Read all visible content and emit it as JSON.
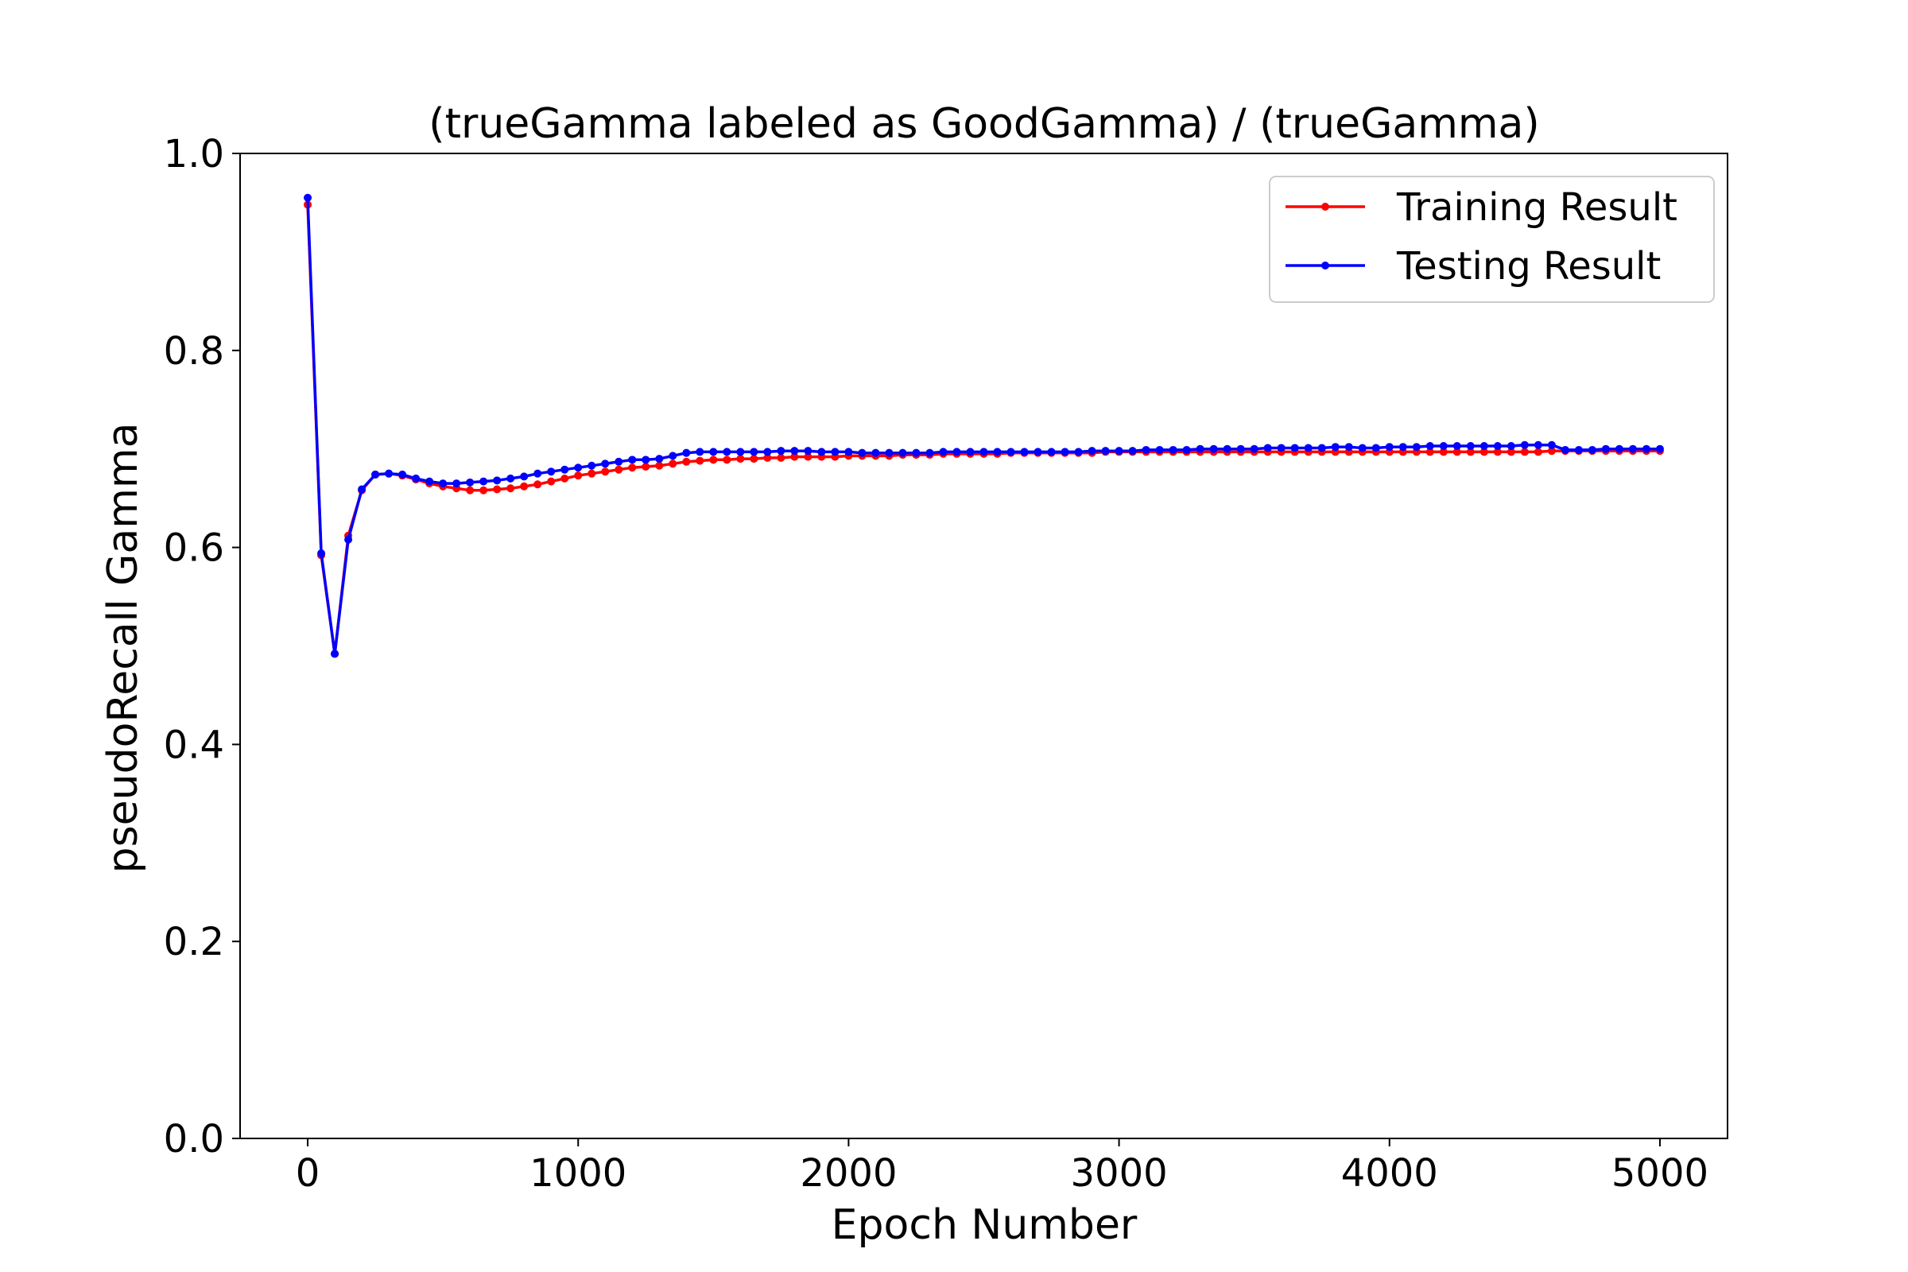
{
  "chart_data": {
    "type": "line",
    "title": "(trueGamma labeled as GoodGamma) / (trueGamma)",
    "xlabel": "Epoch Number",
    "ylabel": "pseudoRecall Gamma",
    "xlim": [
      -250,
      5250
    ],
    "ylim": [
      0.0,
      1.0
    ],
    "xticks": [
      0,
      1000,
      2000,
      3000,
      4000,
      5000
    ],
    "xtick_labels": [
      "0",
      "1000",
      "2000",
      "3000",
      "4000",
      "5000"
    ],
    "yticks": [
      0.0,
      0.2,
      0.4,
      0.6,
      0.8,
      1.0
    ],
    "ytick_labels": [
      "0.0",
      "0.2",
      "0.4",
      "0.6",
      "0.8",
      "1.0"
    ],
    "grid": false,
    "legend_position": "top-right",
    "x": [
      0,
      50,
      100,
      150,
      200,
      250,
      300,
      350,
      400,
      450,
      500,
      550,
      600,
      650,
      700,
      750,
      800,
      850,
      900,
      950,
      1000,
      1050,
      1100,
      1150,
      1200,
      1250,
      1300,
      1350,
      1400,
      1450,
      1500,
      1550,
      1600,
      1650,
      1700,
      1750,
      1800,
      1850,
      1900,
      1950,
      2000,
      2050,
      2100,
      2150,
      2200,
      2250,
      2300,
      2350,
      2400,
      2450,
      2500,
      2550,
      2600,
      2650,
      2700,
      2750,
      2800,
      2850,
      2900,
      2950,
      3000,
      3050,
      3100,
      3150,
      3200,
      3250,
      3300,
      3350,
      3400,
      3450,
      3500,
      3550,
      3600,
      3650,
      3700,
      3750,
      3800,
      3850,
      3900,
      3950,
      4000,
      4050,
      4100,
      4150,
      4200,
      4250,
      4300,
      4350,
      4400,
      4450,
      4500,
      4550,
      4600,
      4650,
      4700,
      4750,
      4800,
      4850,
      4900,
      4950,
      5000
    ],
    "series": [
      {
        "name": "Training Result",
        "color": "#ff0000",
        "values": [
          0.948,
          0.592,
          0.492,
          0.612,
          0.658,
          0.674,
          0.675,
          0.673,
          0.669,
          0.665,
          0.662,
          0.66,
          0.658,
          0.658,
          0.659,
          0.66,
          0.662,
          0.664,
          0.667,
          0.67,
          0.673,
          0.675,
          0.677,
          0.679,
          0.681,
          0.682,
          0.683,
          0.685,
          0.687,
          0.688,
          0.689,
          0.689,
          0.69,
          0.69,
          0.691,
          0.691,
          0.692,
          0.692,
          0.692,
          0.692,
          0.693,
          0.693,
          0.693,
          0.693,
          0.694,
          0.694,
          0.694,
          0.695,
          0.695,
          0.695,
          0.695,
          0.695,
          0.696,
          0.696,
          0.696,
          0.696,
          0.696,
          0.696,
          0.696,
          0.697,
          0.697,
          0.697,
          0.697,
          0.697,
          0.697,
          0.697,
          0.697,
          0.697,
          0.697,
          0.697,
          0.697,
          0.697,
          0.697,
          0.697,
          0.697,
          0.697,
          0.697,
          0.697,
          0.697,
          0.697,
          0.697,
          0.697,
          0.697,
          0.697,
          0.697,
          0.697,
          0.697,
          0.697,
          0.697,
          0.697,
          0.697,
          0.697,
          0.698,
          0.698,
          0.698,
          0.698,
          0.698,
          0.698,
          0.698,
          0.698,
          0.698
        ]
      },
      {
        "name": "Testing Result",
        "color": "#0000ff",
        "values": [
          0.955,
          0.594,
          0.492,
          0.608,
          0.659,
          0.674,
          0.675,
          0.674,
          0.67,
          0.667,
          0.665,
          0.665,
          0.666,
          0.667,
          0.668,
          0.67,
          0.672,
          0.675,
          0.677,
          0.679,
          0.681,
          0.683,
          0.685,
          0.687,
          0.689,
          0.689,
          0.69,
          0.693,
          0.696,
          0.697,
          0.697,
          0.697,
          0.697,
          0.697,
          0.697,
          0.698,
          0.698,
          0.698,
          0.697,
          0.697,
          0.697,
          0.696,
          0.696,
          0.696,
          0.696,
          0.696,
          0.696,
          0.697,
          0.697,
          0.697,
          0.697,
          0.697,
          0.697,
          0.697,
          0.697,
          0.697,
          0.697,
          0.697,
          0.698,
          0.698,
          0.698,
          0.698,
          0.699,
          0.699,
          0.699,
          0.699,
          0.7,
          0.7,
          0.7,
          0.7,
          0.7,
          0.701,
          0.701,
          0.701,
          0.701,
          0.701,
          0.702,
          0.702,
          0.701,
          0.701,
          0.702,
          0.702,
          0.702,
          0.703,
          0.703,
          0.703,
          0.703,
          0.703,
          0.703,
          0.703,
          0.704,
          0.704,
          0.704,
          0.699,
          0.699,
          0.699,
          0.7,
          0.7,
          0.7,
          0.7,
          0.7
        ]
      }
    ]
  }
}
